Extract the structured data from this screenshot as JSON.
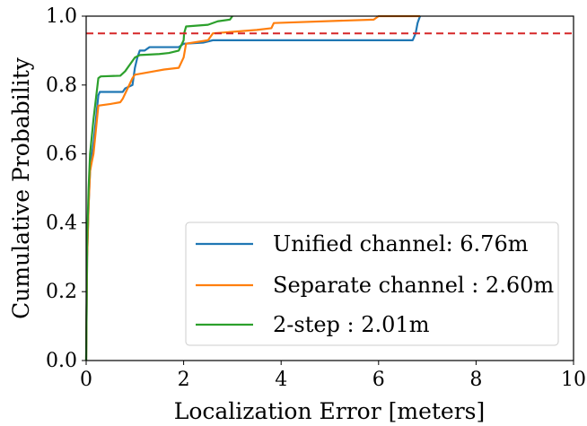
{
  "chart_data": {
    "type": "line",
    "title": "",
    "xlabel": "Localization Error [meters]",
    "ylabel": "Cumulative Probability",
    "xlim": [
      0,
      10
    ],
    "ylim": [
      0,
      1.0
    ],
    "x_ticks": [
      0,
      2,
      4,
      6,
      8,
      10
    ],
    "x_tick_labels": [
      "0",
      "2",
      "4",
      "6",
      "8",
      "10"
    ],
    "y_ticks": [
      0,
      0.2,
      0.4,
      0.6,
      0.8,
      1.0
    ],
    "y_tick_labels": [
      "0.0",
      "0.2",
      "0.4",
      "0.6",
      "0.8",
      "1.0"
    ],
    "grid": false,
    "legend_position": "lower-right",
    "reference_line": {
      "y": 0.95,
      "color": "#d62728",
      "style": "dashed"
    },
    "series": [
      {
        "name": "Unified channel: 6.76m",
        "color": "#1f77b4",
        "points": [
          [
            0,
            0
          ],
          [
            0.02,
            0.3
          ],
          [
            0.05,
            0.45
          ],
          [
            0.08,
            0.55
          ],
          [
            0.12,
            0.6
          ],
          [
            0.15,
            0.63
          ],
          [
            0.2,
            0.7
          ],
          [
            0.25,
            0.77
          ],
          [
            0.28,
            0.78
          ],
          [
            0.75,
            0.78
          ],
          [
            0.8,
            0.79
          ],
          [
            0.95,
            0.8
          ],
          [
            1.0,
            0.85
          ],
          [
            1.05,
            0.88
          ],
          [
            1.1,
            0.9
          ],
          [
            1.2,
            0.9
          ],
          [
            1.3,
            0.91
          ],
          [
            1.9,
            0.91
          ],
          [
            2.0,
            0.92
          ],
          [
            2.4,
            0.923
          ],
          [
            2.6,
            0.93
          ],
          [
            6.7,
            0.93
          ],
          [
            6.76,
            0.95
          ],
          [
            6.8,
            0.98
          ],
          [
            6.85,
            1.0
          ]
        ]
      },
      {
        "name": "Separate channel : 2.60m",
        "color": "#ff7f0e",
        "points": [
          [
            0,
            0
          ],
          [
            0.02,
            0.3
          ],
          [
            0.05,
            0.45
          ],
          [
            0.08,
            0.55
          ],
          [
            0.12,
            0.58
          ],
          [
            0.15,
            0.6
          ],
          [
            0.2,
            0.67
          ],
          [
            0.25,
            0.74
          ],
          [
            0.5,
            0.745
          ],
          [
            0.7,
            0.75
          ],
          [
            0.75,
            0.76
          ],
          [
            0.85,
            0.79
          ],
          [
            0.95,
            0.82
          ],
          [
            1.0,
            0.83
          ],
          [
            1.4,
            0.84
          ],
          [
            1.6,
            0.845
          ],
          [
            1.9,
            0.85
          ],
          [
            2.0,
            0.88
          ],
          [
            2.05,
            0.92
          ],
          [
            2.5,
            0.93
          ],
          [
            2.6,
            0.95
          ],
          [
            3.5,
            0.96
          ],
          [
            3.8,
            0.965
          ],
          [
            3.85,
            0.98
          ],
          [
            5.9,
            0.99
          ],
          [
            6.0,
            1.0
          ],
          [
            6.85,
            1.0
          ]
        ]
      },
      {
        "name": "2-step : 2.01m",
        "color": "#2ca02c",
        "points": [
          [
            0,
            0
          ],
          [
            0.02,
            0.35
          ],
          [
            0.05,
            0.5
          ],
          [
            0.08,
            0.6
          ],
          [
            0.15,
            0.7
          ],
          [
            0.25,
            0.82
          ],
          [
            0.3,
            0.825
          ],
          [
            0.7,
            0.827
          ],
          [
            0.8,
            0.84
          ],
          [
            0.9,
            0.86
          ],
          [
            1.0,
            0.88
          ],
          [
            1.1,
            0.887
          ],
          [
            1.5,
            0.89
          ],
          [
            1.7,
            0.893
          ],
          [
            1.9,
            0.9
          ],
          [
            2.0,
            0.93
          ],
          [
            2.01,
            0.95
          ],
          [
            2.05,
            0.97
          ],
          [
            2.5,
            0.975
          ],
          [
            2.7,
            0.985
          ],
          [
            2.95,
            0.99
          ],
          [
            3.0,
            1.0
          ]
        ]
      }
    ]
  }
}
